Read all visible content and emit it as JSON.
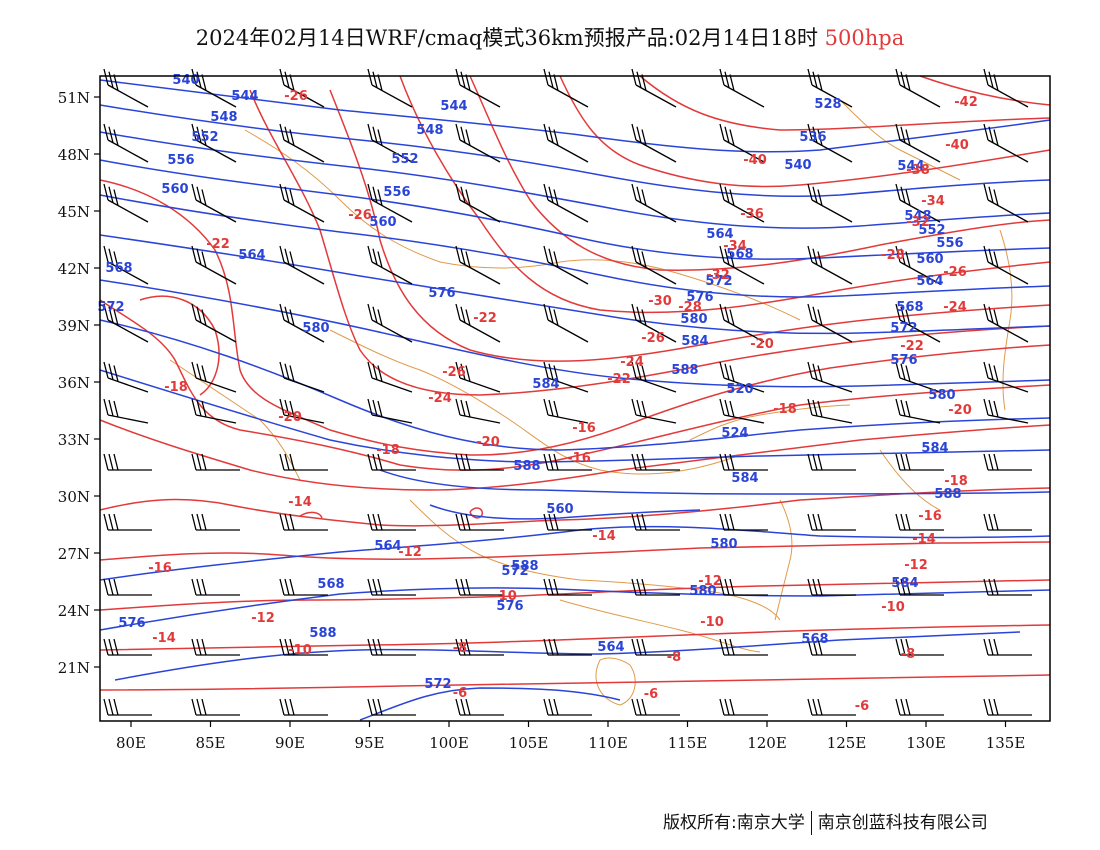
{
  "title": {
    "main": "2024年02月14日WRF/cmaq模式36km预报产品:02月14日18时",
    "level": "500hpa"
  },
  "axes": {
    "lat_labels": [
      "51N",
      "48N",
      "45N",
      "42N",
      "39N",
      "36N",
      "33N",
      "30N",
      "27N",
      "24N",
      "21N"
    ],
    "lon_labels": [
      "80E",
      "85E",
      "90E",
      "95E",
      "100E",
      "105E",
      "110E",
      "115E",
      "120E",
      "125E",
      "130E",
      "135E"
    ]
  },
  "height_labels": [
    "540",
    "544",
    "548",
    "552",
    "556",
    "560",
    "564",
    "568",
    "572",
    "576",
    "580",
    "584",
    "588",
    "544",
    "548",
    "552",
    "556",
    "560",
    "564",
    "568",
    "572",
    "576",
    "580",
    "584",
    "588",
    "520",
    "524",
    "528",
    "536",
    "540",
    "544",
    "548",
    "552",
    "556",
    "560",
    "564",
    "568",
    "572",
    "576",
    "580",
    "584",
    "588",
    "560",
    "564",
    "568",
    "572",
    "576",
    "580",
    "584",
    "588",
    "564",
    "568",
    "572",
    "576",
    "580",
    "584",
    "588"
  ],
  "temp_labels": [
    "-26",
    "-22",
    "-18",
    "-20",
    "-14",
    "-16",
    "-14",
    "-12",
    "-10",
    "-26",
    "-22",
    "-24",
    "-26",
    "-20",
    "-18",
    "-16",
    "-12",
    "-10",
    "-8",
    "-6",
    "-40",
    "-36",
    "-34",
    "-32",
    "-30",
    "-28",
    "-26",
    "-24",
    "-22",
    "-20",
    "-18",
    "-16",
    "-14",
    "-12",
    "-10",
    "-8",
    "-6",
    "-42",
    "-40",
    "-38",
    "-34",
    "-32",
    "-28",
    "-26",
    "-24",
    "-22",
    "-20",
    "-18",
    "-16",
    "-14",
    "-12",
    "-10",
    "-8",
    "-6"
  ],
  "footer": {
    "copyright": "版权所有:南京大学",
    "company": "南京创蓝科技有限公司"
  },
  "colors": {
    "height_contour": "#2a44d8",
    "temp_contour": "#e23a3a",
    "boundary": "#e09a4a",
    "wind_barb": "#000000",
    "level_text": "#e23a3a"
  }
}
